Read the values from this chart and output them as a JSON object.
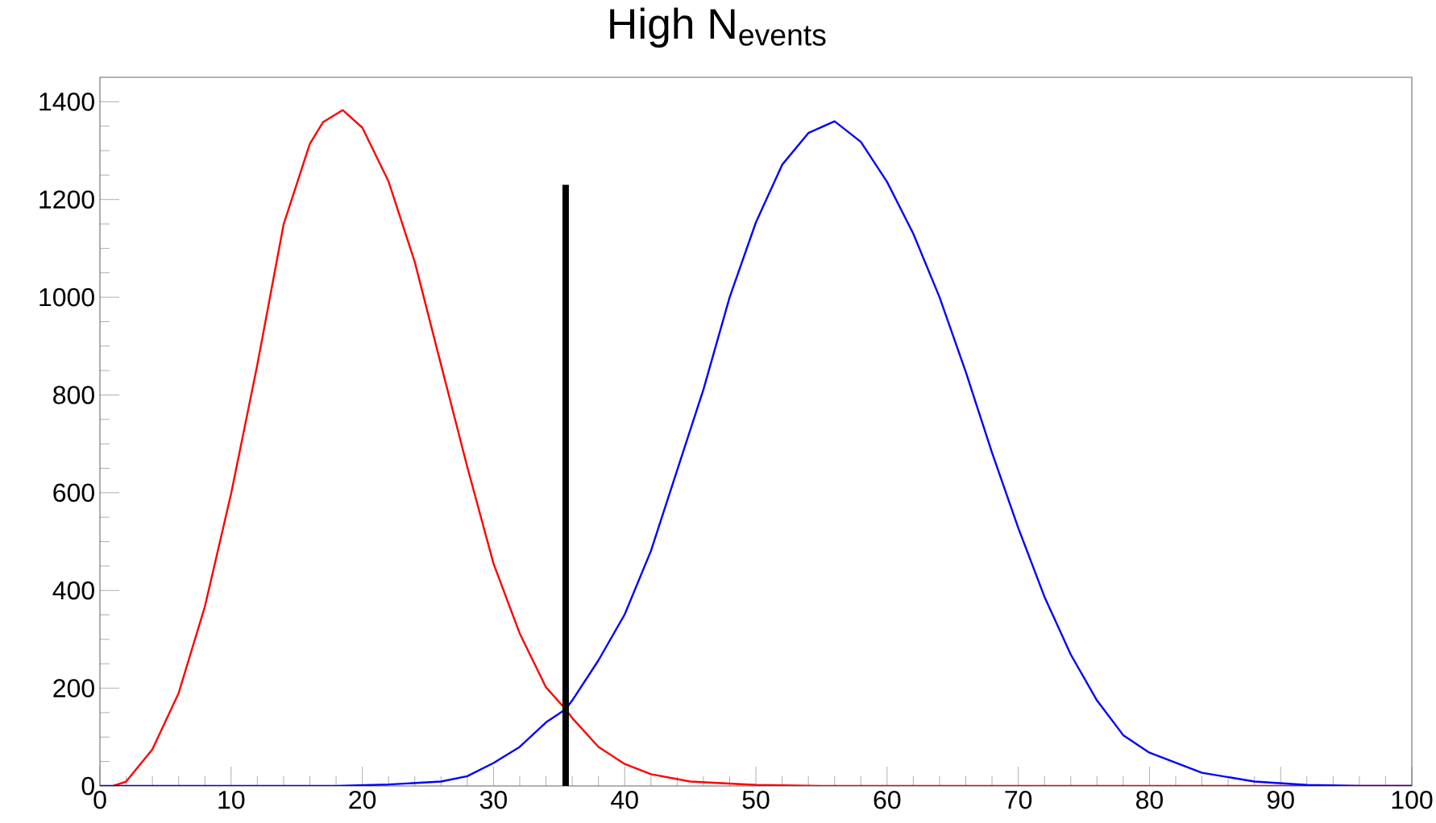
{
  "chart_data": {
    "type": "line",
    "title": "High N$_{events}$",
    "xlim": [
      0,
      100
    ],
    "ylim": [
      0,
      1450
    ],
    "xticks": [
      0,
      10,
      20,
      30,
      40,
      50,
      60,
      70,
      80,
      90,
      100
    ],
    "yticks": [
      0,
      200,
      400,
      600,
      800,
      1000,
      1200,
      1400
    ],
    "grid": false,
    "series": [
      {
        "color": "#ff0000",
        "x": [
          1,
          2,
          4,
          6,
          8,
          10,
          12,
          14,
          16,
          17,
          18.5,
          20,
          22,
          24,
          26,
          28,
          30,
          32,
          34,
          35.5,
          36,
          38,
          40,
          42,
          45,
          50,
          55,
          60,
          70,
          80,
          90,
          100
        ],
        "values": [
          0,
          9,
          75,
          190,
          367,
          598,
          862,
          1149,
          1314,
          1358,
          1383,
          1347,
          1237,
          1072,
          862,
          653,
          455,
          312,
          202,
          157,
          139,
          80,
          45,
          24,
          9,
          2,
          0,
          0,
          0,
          0,
          0,
          0
        ]
      },
      {
        "color": "#0000ff",
        "x": [
          0,
          10,
          18,
          22,
          26,
          28,
          30,
          32,
          34,
          35.5,
          36,
          38,
          40,
          42,
          44,
          46,
          48,
          50,
          52,
          54,
          56,
          58,
          60,
          62,
          64,
          66,
          68,
          70,
          72,
          74,
          76,
          78,
          80,
          84,
          88,
          92,
          96,
          100
        ],
        "values": [
          0,
          0,
          0,
          3,
          9,
          20,
          47,
          80,
          130,
          157,
          175,
          257,
          351,
          481,
          646,
          811,
          1000,
          1153,
          1271,
          1336,
          1360,
          1318,
          1236,
          1130,
          1000,
          847,
          682,
          528,
          387,
          269,
          175,
          104,
          68,
          27,
          9,
          2,
          0,
          0
        ]
      },
      {
        "color": "#000000",
        "x": [
          35.5,
          35.5
        ],
        "values": [
          0,
          1230
        ]
      }
    ]
  }
}
